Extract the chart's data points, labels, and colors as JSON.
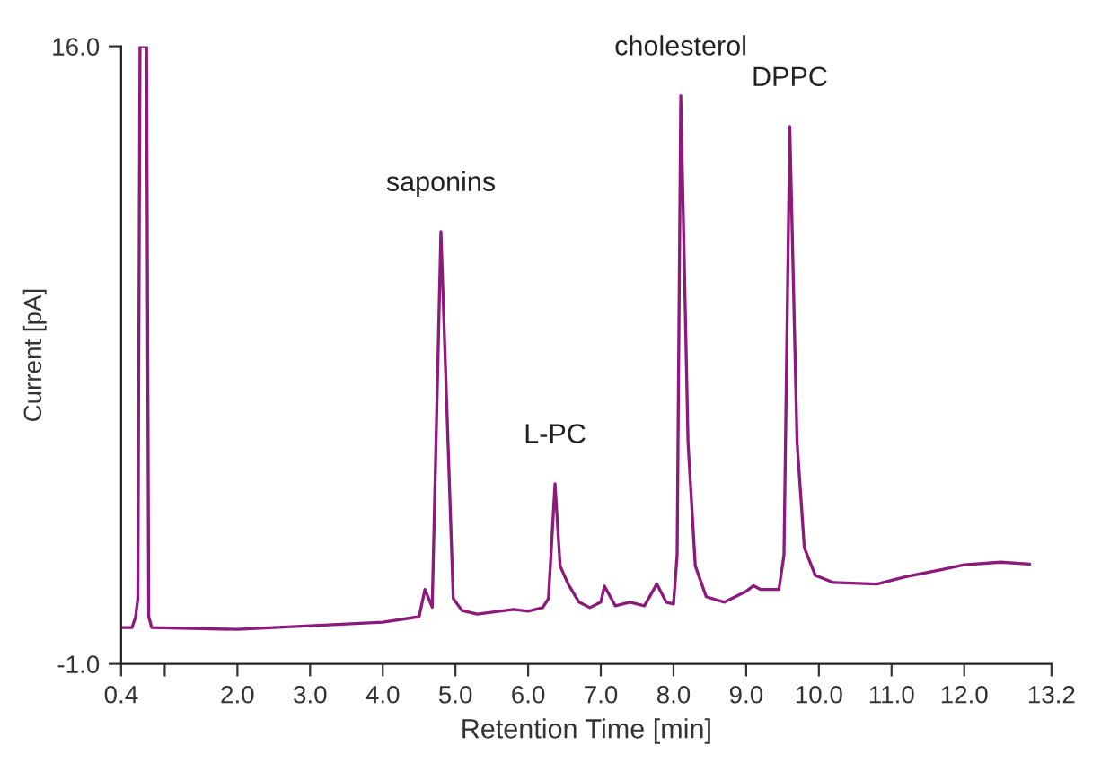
{
  "chart_data": {
    "type": "line",
    "xlabel": "Retention Time [min]",
    "ylabel": "Current [pA]",
    "x": [
      0.4,
      0.55,
      0.6,
      0.63,
      0.66,
      0.72,
      0.75,
      0.78,
      0.82,
      2.0,
      3.0,
      4.0,
      4.5,
      4.58,
      4.68,
      4.8,
      4.97,
      5.09,
      5.3,
      5.8,
      6.0,
      6.2,
      6.28,
      6.37,
      6.44,
      6.55,
      6.7,
      6.85,
      7.0,
      7.05,
      7.2,
      7.4,
      7.6,
      7.77,
      7.9,
      8.0,
      8.05,
      8.1,
      8.2,
      8.3,
      8.45,
      8.7,
      9.0,
      9.1,
      9.2,
      9.45,
      9.52,
      9.6,
      9.7,
      9.8,
      9.95,
      10.2,
      10.8,
      11.2,
      11.7,
      12.0,
      12.5,
      12.9
    ],
    "series": [
      {
        "color": "#8b1a7a",
        "values": [
          0.0,
          0.0,
          0.3,
          0.8,
          16.0,
          16.0,
          16.0,
          0.3,
          0.0,
          -0.05,
          0.05,
          0.15,
          0.3,
          1.05,
          0.56,
          10.9,
          0.8,
          0.47,
          0.37,
          0.5,
          0.45,
          0.55,
          0.8,
          3.96,
          1.7,
          1.2,
          0.7,
          0.55,
          0.7,
          1.14,
          0.6,
          0.7,
          0.6,
          1.2,
          0.7,
          0.65,
          2.0,
          14.64,
          5.1,
          1.7,
          0.85,
          0.7,
          1.0,
          1.15,
          1.05,
          1.05,
          2.0,
          13.79,
          5.1,
          2.2,
          1.44,
          1.24,
          1.2,
          1.4,
          1.6,
          1.73,
          1.8,
          1.75
        ]
      }
    ],
    "xlim": [
      0.4,
      13.2
    ],
    "xticks": [
      {
        "value": 0.4,
        "label": "0.4"
      },
      {
        "value": 1.0,
        "label": null
      },
      {
        "value": 2,
        "label": "2.0"
      },
      {
        "value": 3,
        "label": "3.0"
      },
      {
        "value": 4,
        "label": "4.0"
      },
      {
        "value": 5,
        "label": "5.0"
      },
      {
        "value": 6,
        "label": "6.0"
      },
      {
        "value": 7,
        "label": "7.0"
      },
      {
        "value": 8,
        "label": "8.0"
      },
      {
        "value": 9,
        "label": "9.0"
      },
      {
        "value": 10,
        "label": "10.0"
      },
      {
        "value": 11,
        "label": "11.0"
      },
      {
        "value": 12,
        "label": "12.0"
      },
      {
        "value": 13.2,
        "label": "13.2"
      }
    ],
    "ylim": [
      -1.0,
      16.0
    ],
    "yticks": [
      {
        "value": -1,
        "label": "-1.0"
      },
      {
        "value": 16,
        "label": "16.0"
      }
    ],
    "grid": false,
    "legend": false,
    "marker": "none",
    "line_style": "solid",
    "annotations": [
      {
        "text": "saponins",
        "x": 4.8,
        "y": 10.9
      },
      {
        "text": "L-PC",
        "x": 6.37,
        "y": 3.96
      },
      {
        "text": "cholesterol",
        "x": 8.1,
        "y": 14.64
      },
      {
        "text": "DPPC",
        "x": 9.6,
        "y": 13.79
      }
    ]
  }
}
